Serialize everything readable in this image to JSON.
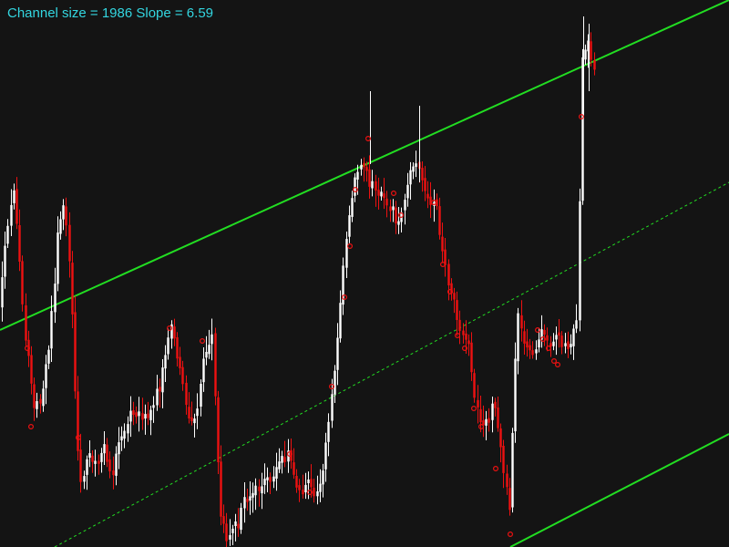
{
  "header": {
    "text": "Channel size = 1986 Slope = 6.59"
  },
  "colors": {
    "background": "#141414",
    "bull": "#ffffff",
    "bear": "#ee1111",
    "channel": "#22dd22",
    "label": "#33d6e0",
    "marker": "#ee1111"
  },
  "chart_data": {
    "type": "candlestick",
    "title": "",
    "grid": false,
    "ylim": [
      0,
      600
    ],
    "channel": {
      "size": 1986,
      "slope": 6.59,
      "upper": {
        "start": [
          0,
          362
        ],
        "end": [
          800,
          0
        ]
      },
      "middle": {
        "start": [
          60,
          600
        ],
        "end": [
          800,
          200
        ]
      },
      "lower": {
        "start": [
          560,
          600
        ],
        "end": [
          800,
          476
        ]
      }
    },
    "candles_keyframes": [
      [
        2,
        340
      ],
      [
        8,
        268
      ],
      [
        18,
        212
      ],
      [
        24,
        278
      ],
      [
        30,
        360
      ],
      [
        40,
        450
      ],
      [
        50,
        428
      ],
      [
        58,
        368
      ],
      [
        66,
        262
      ],
      [
        74,
        220
      ],
      [
        80,
        300
      ],
      [
        90,
        540
      ],
      [
        100,
        498
      ],
      [
        108,
        512
      ],
      [
        116,
        488
      ],
      [
        124,
        520
      ],
      [
        134,
        478
      ],
      [
        142,
        462
      ],
      [
        150,
        440
      ],
      [
        160,
        468
      ],
      [
        170,
        448
      ],
      [
        178,
        420
      ],
      [
        184,
        388
      ],
      [
        192,
        352
      ],
      [
        200,
        408
      ],
      [
        210,
        452
      ],
      [
        218,
        468
      ],
      [
        228,
        382
      ],
      [
        236,
        368
      ],
      [
        244,
        560
      ],
      [
        252,
        588
      ],
      [
        262,
        582
      ],
      [
        270,
        552
      ],
      [
        280,
        538
      ],
      [
        290,
        532
      ],
      [
        300,
        528
      ],
      [
        310,
        504
      ],
      [
        320,
        500
      ],
      [
        330,
        540
      ],
      [
        340,
        528
      ],
      [
        350,
        550
      ],
      [
        360,
        494
      ],
      [
        366,
        438
      ],
      [
        374,
        362
      ],
      [
        380,
        288
      ],
      [
        386,
        236
      ],
      [
        392,
        196
      ],
      [
        400,
        182
      ],
      [
        408,
        198
      ],
      [
        416,
        208
      ],
      [
        426,
        218
      ],
      [
        434,
        232
      ],
      [
        442,
        248
      ],
      [
        450,
        206
      ],
      [
        458,
        172
      ],
      [
        466,
        204
      ],
      [
        474,
        218
      ],
      [
        482,
        232
      ],
      [
        490,
        290
      ],
      [
        500,
        330
      ],
      [
        508,
        358
      ],
      [
        516,
        372
      ],
      [
        522,
        428
      ],
      [
        530,
        468
      ],
      [
        538,
        458
      ],
      [
        546,
        442
      ],
      [
        554,
        500
      ],
      [
        562,
        566
      ],
      [
        570,
        342
      ],
      [
        580,
        388
      ],
      [
        590,
        382
      ],
      [
        598,
        360
      ],
      [
        606,
        388
      ],
      [
        614,
        368
      ],
      [
        622,
        380
      ],
      [
        630,
        372
      ],
      [
        636,
        350
      ],
      [
        642,
        66
      ],
      [
        648,
        48
      ],
      [
        654,
        82
      ]
    ],
    "markers_keyframes": [
      [
        30,
        382
      ],
      [
        34,
        468
      ],
      [
        86,
        480
      ],
      [
        186,
        360
      ],
      [
        222,
        374
      ],
      [
        318,
        498
      ],
      [
        340,
        540
      ],
      [
        364,
        424
      ],
      [
        378,
        326
      ],
      [
        384,
        270
      ],
      [
        390,
        208
      ],
      [
        404,
        152
      ],
      [
        432,
        212
      ],
      [
        440,
        236
      ],
      [
        476,
        222
      ],
      [
        486,
        290
      ],
      [
        494,
        320
      ],
      [
        502,
        368
      ],
      [
        510,
        382
      ],
      [
        520,
        448
      ],
      [
        528,
        468
      ],
      [
        544,
        514
      ],
      [
        560,
        586
      ],
      [
        590,
        362
      ],
      [
        596,
        372
      ],
      [
        602,
        382
      ],
      [
        608,
        396
      ],
      [
        612,
        400
      ],
      [
        638,
        128
      ]
    ]
  }
}
